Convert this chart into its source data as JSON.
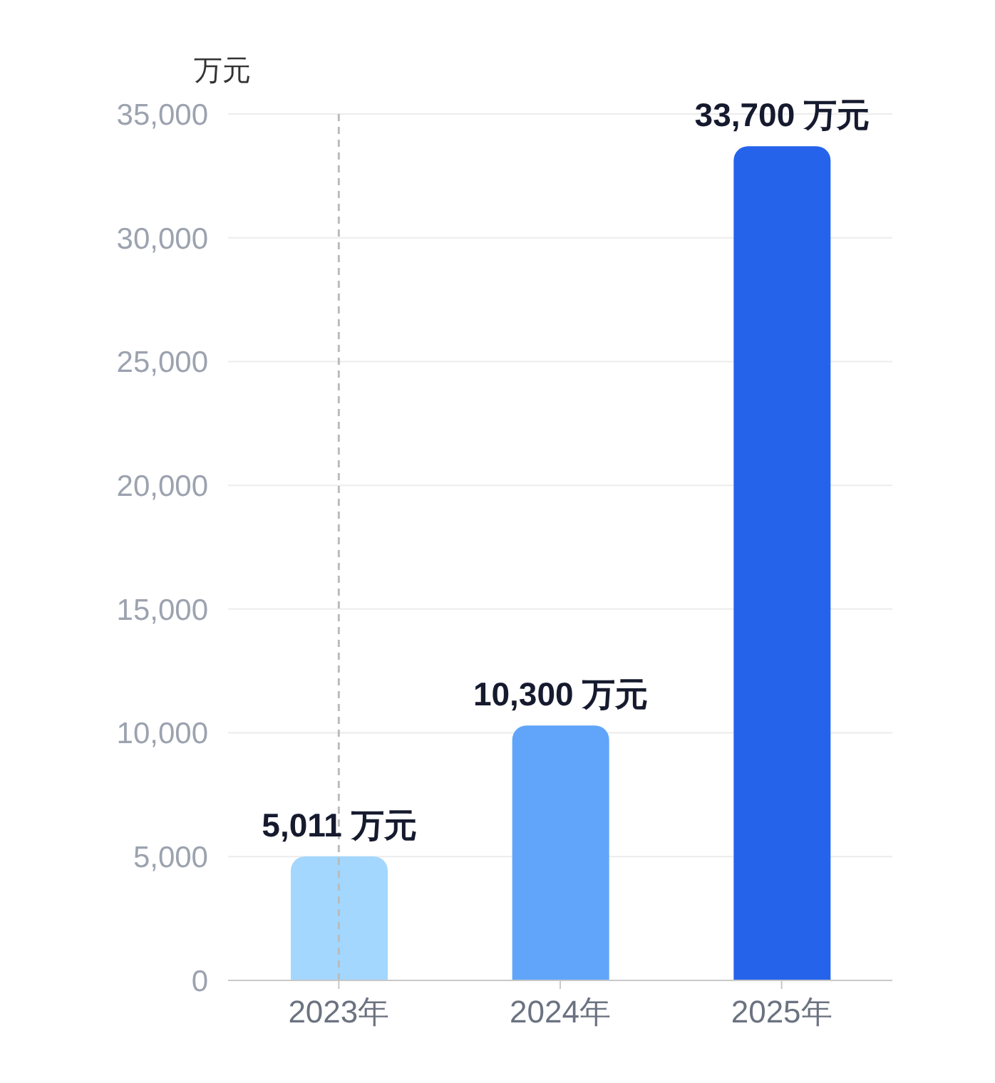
{
  "chart_data": {
    "type": "bar",
    "ylabel": "万元",
    "categories": [
      "2023年",
      "2024年",
      "2025年"
    ],
    "values": [
      5011,
      10300,
      33700
    ],
    "colors": [
      "#a3d7fd",
      "#60a5fa",
      "#2563eb"
    ],
    "value_labels": [
      "5,011 万元",
      "10,300 万元",
      "33,700 万元"
    ],
    "ylim": [
      0,
      35000
    ],
    "yticks": [
      0,
      {
        "value": 5000,
        "label": "5,000"
      },
      {
        "value": 10000,
        "label": "10,000"
      },
      {
        "value": 15000,
        "label": "15,000"
      },
      {
        "value": 20000,
        "label": "20,000"
      },
      {
        "value": 25000,
        "label": "25,000"
      },
      {
        "value": 30000,
        "label": "30,000"
      },
      {
        "value": 35000,
        "label": "35,000"
      }
    ],
    "grid": "y",
    "ref_lines": [
      {
        "axis": "x",
        "value": "2023年",
        "color": "#bbbbbb",
        "line_style": "dashed"
      }
    ]
  }
}
